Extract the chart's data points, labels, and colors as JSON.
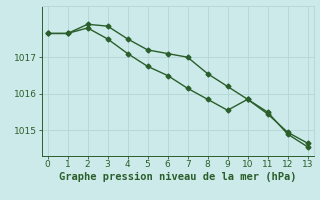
{
  "line1_x": [
    0,
    1,
    2,
    3,
    4,
    5,
    6,
    7,
    8,
    9,
    10,
    11,
    12,
    13
  ],
  "line1_y": [
    1017.65,
    1017.65,
    1017.9,
    1017.85,
    1017.5,
    1017.2,
    1017.1,
    1017.0,
    1016.55,
    1016.2,
    1015.85,
    1015.45,
    1014.95,
    1014.65
  ],
  "line2_x": [
    0,
    1,
    2,
    3,
    4,
    5,
    6,
    7,
    8,
    9,
    10,
    11,
    12,
    13
  ],
  "line2_y": [
    1017.65,
    1017.65,
    1017.8,
    1017.5,
    1017.1,
    1016.75,
    1016.5,
    1016.15,
    1015.85,
    1015.55,
    1015.85,
    1015.5,
    1014.9,
    1014.55
  ],
  "line_color": "#2a5e2a",
  "bg_color": "#cdeaea",
  "grid_color": "#b8d8d8",
  "xlabel": "Graphe pression niveau de la mer (hPa)",
  "xlabel_color": "#2a5e2a",
  "xlabel_fontsize": 7.5,
  "xlim": [
    -0.3,
    13.3
  ],
  "ylim": [
    1014.3,
    1018.4
  ],
  "yticks": [
    1015,
    1016,
    1017
  ],
  "xticks": [
    0,
    1,
    2,
    3,
    4,
    5,
    6,
    7,
    8,
    9,
    10,
    11,
    12,
    13
  ],
  "tick_fontsize": 6.5,
  "line_width": 1.0,
  "marker": "D",
  "marker_size": 2.5
}
